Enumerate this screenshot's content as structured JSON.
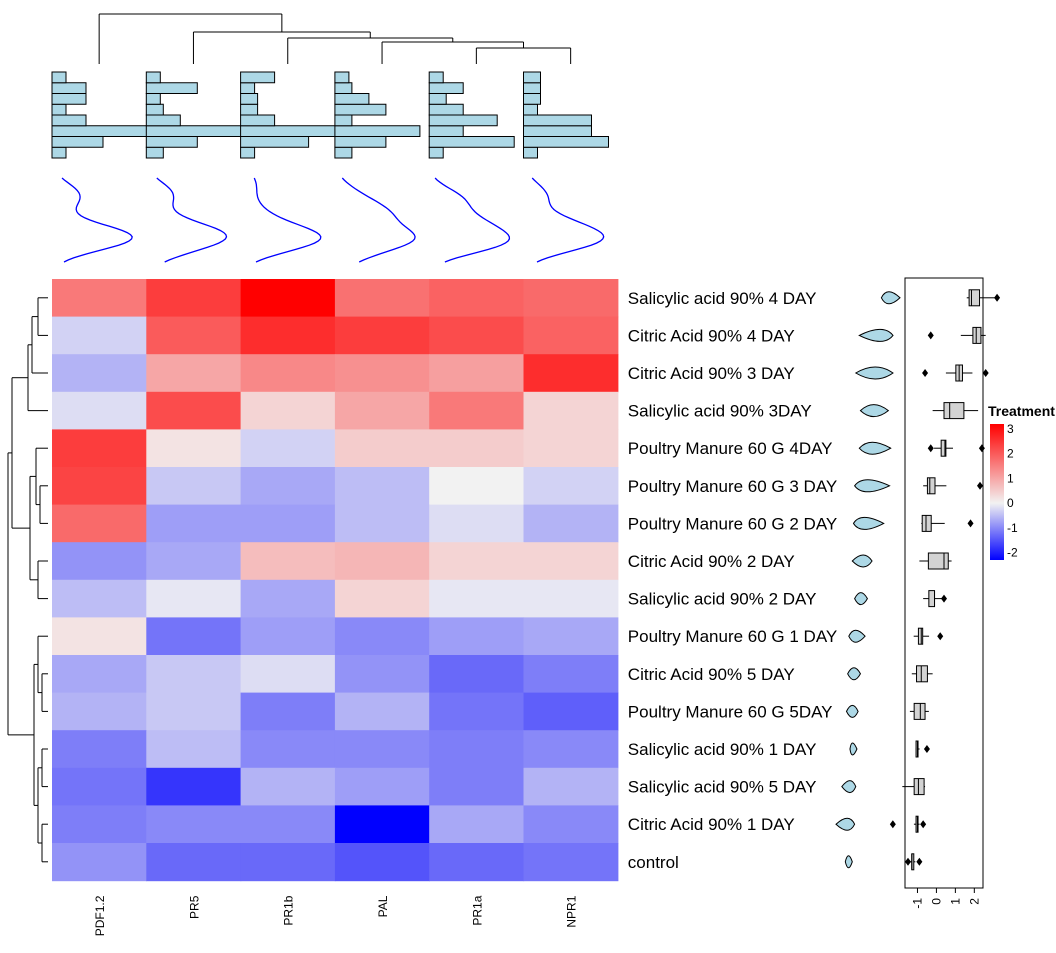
{
  "chart_data": {
    "type": "heatmap",
    "columns": [
      "PDF1.2",
      "PR5",
      "PR1b",
      "PAL",
      "PR1a",
      "NPR1"
    ],
    "rows": [
      "Salicylic acid 90% 4 DAY",
      "Citric Acid 90% 4 DAY",
      "Citric Acid 90% 3 DAY",
      "Salicylic acid 90% 3DAY",
      "Poultry Manure 60 G 4DAY",
      "Poultry Manure 60 G 3 DAY",
      "Poultry Manure 60 G 2 DAY",
      "Citric Acid 90% 2 DAY",
      "Salicylic acid 90% 2 DAY",
      "Poultry Manure 60 G 1 DAY",
      "Citric Acid 90% 5 DAY",
      "Poultry Manure 60 G 5DAY",
      "Salicylic acid 90% 1 DAY",
      "Salicylic acid 90% 5 DAY",
      "Citric Acid 90% 1 DAY",
      "control"
    ],
    "values": [
      [
        1.6,
        2.4,
        3.2,
        1.7,
        1.9,
        1.8
      ],
      [
        -0.3,
        2.0,
        2.6,
        2.4,
        2.2,
        1.9
      ],
      [
        -0.6,
        1.0,
        1.4,
        1.3,
        1.1,
        2.6
      ],
      [
        -0.2,
        2.2,
        0.4,
        1.0,
        1.6,
        0.4
      ],
      [
        2.4,
        0.2,
        -0.3,
        0.5,
        0.5,
        0.4
      ],
      [
        2.3,
        -0.4,
        -0.7,
        -0.5,
        0.0,
        -0.3
      ],
      [
        1.8,
        -0.8,
        -0.8,
        -0.5,
        -0.2,
        -0.6
      ],
      [
        -0.9,
        -0.7,
        0.7,
        0.8,
        0.4,
        0.4
      ],
      [
        -0.5,
        -0.1,
        -0.7,
        0.4,
        -0.1,
        -0.1
      ],
      [
        0.2,
        -1.2,
        -0.8,
        -1.0,
        -0.8,
        -0.7
      ],
      [
        -0.7,
        -0.4,
        -0.2,
        -0.9,
        -1.3,
        -1.1
      ],
      [
        -0.6,
        -0.4,
        -1.1,
        -0.6,
        -1.2,
        -1.4
      ],
      [
        -1.1,
        -0.5,
        -1.0,
        -1.0,
        -1.1,
        -1.0
      ],
      [
        -1.2,
        -1.8,
        -0.6,
        -0.8,
        -1.1,
        -0.6
      ],
      [
        -1.1,
        -1.0,
        -1.0,
        -2.3,
        -0.7,
        -1.0
      ],
      [
        -0.9,
        -1.3,
        -1.3,
        -1.5,
        -1.3,
        -1.2
      ]
    ],
    "legend": {
      "title": "Treatment",
      "range": [
        -2.3,
        3.2
      ],
      "ticks": [
        3,
        2,
        1,
        0,
        -1,
        -2
      ],
      "colors": {
        "low": "#0000ff",
        "mid": "#f2f2f2",
        "high": "#ff0000"
      }
    },
    "histogram_color": "#add8e6",
    "density_color": "#0000ff",
    "row_summary": {
      "axis_ticks": [
        -1,
        0,
        1,
        2
      ],
      "axis_range": [
        -1.5,
        2.3
      ]
    }
  }
}
